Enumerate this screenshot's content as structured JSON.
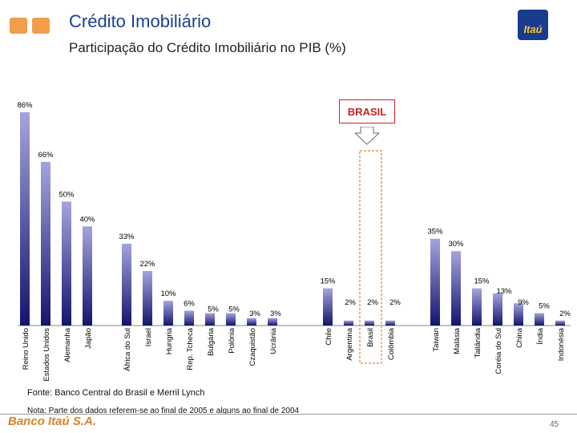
{
  "header": {
    "title": "Crédito Imobiliário",
    "subtitle": "Participação do Crédito Imobiliário no PIB (%)",
    "logo_text": "Itaú"
  },
  "callout": {
    "label": "BRASIL"
  },
  "chart_data": {
    "type": "bar",
    "title": "Participação do Crédito Imobiliário no PIB (%)",
    "xlabel": "",
    "ylabel": "",
    "ylim": [
      0,
      86
    ],
    "highlight": "Brasil",
    "categories": [
      "Reino Unido",
      "Estados Unidos",
      "Alemanha",
      "Japão",
      "África do Sul",
      "Israel",
      "Hungria",
      "Rep. Tcheca",
      "Bulgária",
      "Polônia",
      "Czaquistão",
      "Ucrânia",
      "Chile",
      "Argentina",
      "Brasil",
      "Colômbia",
      "Taiwan",
      "Malásia",
      "Tailândia",
      "Coréia do Sul",
      "China",
      "Índia",
      "Indonésia"
    ],
    "values": [
      86,
      66,
      50,
      40,
      33,
      22,
      10,
      6,
      5,
      5,
      3,
      3,
      15,
      2,
      2,
      2,
      35,
      30,
      15,
      13,
      9,
      5,
      2
    ],
    "labels": [
      "86%",
      "66%",
      "50%",
      "40%",
      "33%",
      "22%",
      "10%",
      "6%",
      "5%",
      "5%",
      "3%",
      "3%",
      "15%",
      "2%",
      "2%",
      "2%",
      "35%",
      "30%",
      "15%",
      "13%",
      "9%",
      "5%",
      "2%"
    ],
    "groups": [
      [
        0,
        11
      ],
      [
        12,
        15
      ],
      [
        16,
        22
      ]
    ]
  },
  "footer": {
    "source": "Fonte: Banco Central do Brasil e Merril Lynch",
    "note": "Nota: Parte dos dados referem-se ao final de 2005 e alguns ao final de 2004",
    "bank": "Banco Itaú S.A.",
    "page": "45"
  },
  "colors": {
    "bar_top": "#9a9ad6",
    "bar_bottom": "#1a1a78",
    "title": "#1c3f94",
    "accent": "#d02020"
  }
}
